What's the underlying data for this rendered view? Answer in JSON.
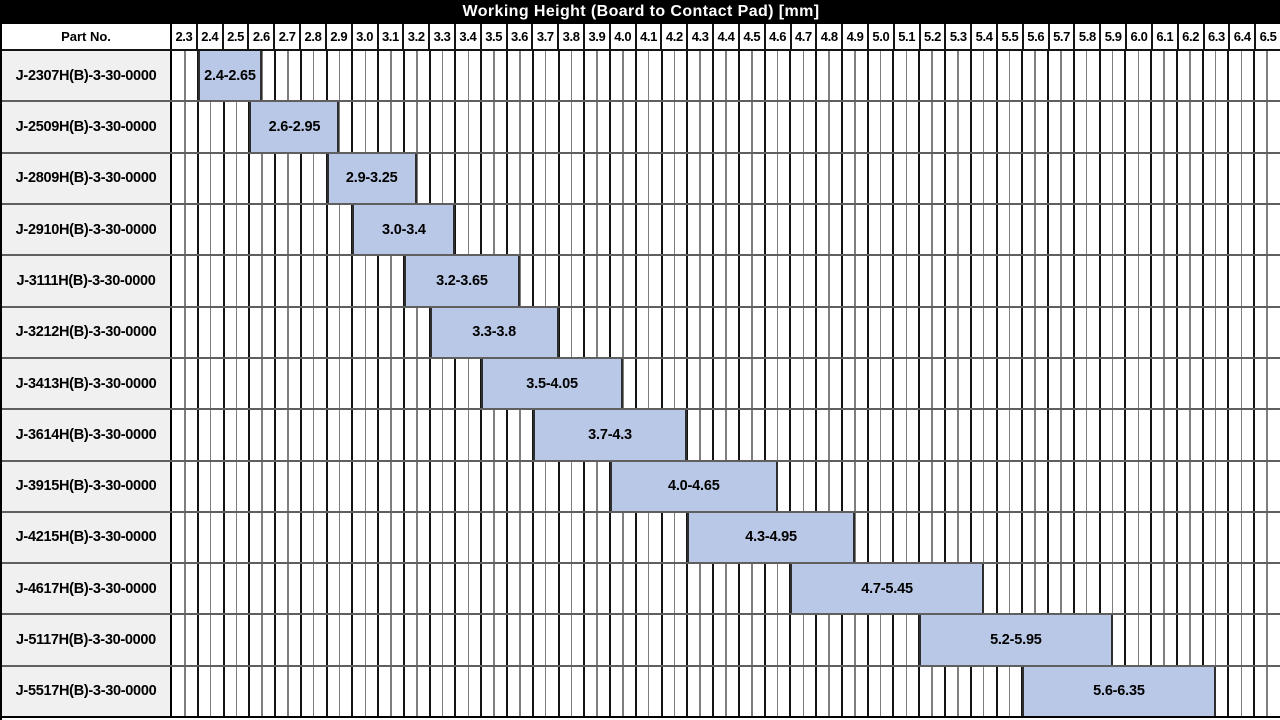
{
  "table": {
    "part_no_header": "Part No."
  },
  "colors": {
    "title_bg": "#000000",
    "title_fg": "#ffffff",
    "table_bg": "#ffffff",
    "part_col_bg": "#f0f0f0",
    "bar_fill": "#b9c8e6",
    "bar_border": "#2e2e2e",
    "grid_major": "#141414",
    "grid_minor": "#7e7e7e",
    "row_border": "#5f5f5f",
    "header_border": "#141414"
  },
  "chart_data": {
    "type": "bar",
    "orientation": "horizontal-range",
    "title": "Working Height (Board to Contact Pad) [mm]",
    "xlabel": "Working Height (Board to Contact Pad) [mm]",
    "ylabel": "Part No.",
    "xlim": [
      2.3,
      6.6
    ],
    "x_major_step": 0.1,
    "x_minor_step": 0.05,
    "grid": true,
    "legend": false,
    "x_tick_labels": [
      "2.3",
      "2.4",
      "2.5",
      "2.6",
      "2.7",
      "2.8",
      "2.9",
      "3.0",
      "3.1",
      "3.2",
      "3.3",
      "3.4",
      "3.5",
      "3.6",
      "3.7",
      "3.8",
      "3.9",
      "4.0",
      "4.1",
      "4.2",
      "4.3",
      "4.4",
      "4.5",
      "4.6",
      "4.7",
      "4.8",
      "4.9",
      "5.0",
      "5.1",
      "5.2",
      "5.3",
      "5.4",
      "5.5",
      "5.6",
      "5.7",
      "5.8",
      "5.9",
      "6.0",
      "6.1",
      "6.2",
      "6.3",
      "6.4",
      "6.5"
    ],
    "categories": [
      "J-2307H(B)-3-30-0000",
      "J-2509H(B)-3-30-0000",
      "J-2809H(B)-3-30-0000",
      "J-2910H(B)-3-30-0000",
      "J-3111H(B)-3-30-0000",
      "J-3212H(B)-3-30-0000",
      "J-3413H(B)-3-30-0000",
      "J-3614H(B)-3-30-0000",
      "J-3915H(B)-3-30-0000",
      "J-4215H(B)-3-30-0000",
      "J-4617H(B)-3-30-0000",
      "J-5117H(B)-3-30-0000",
      "J-5517H(B)-3-30-0000"
    ],
    "ranges": [
      {
        "start": 2.4,
        "end": 2.65,
        "label": "2.4-2.65"
      },
      {
        "start": 2.6,
        "end": 2.95,
        "label": "2.6-2.95"
      },
      {
        "start": 2.9,
        "end": 3.25,
        "label": "2.9-3.25"
      },
      {
        "start": 3.0,
        "end": 3.4,
        "label": "3.0-3.4"
      },
      {
        "start": 3.2,
        "end": 3.65,
        "label": "3.2-3.65"
      },
      {
        "start": 3.3,
        "end": 3.8,
        "label": "3.3-3.8"
      },
      {
        "start": 3.5,
        "end": 4.05,
        "label": "3.5-4.05"
      },
      {
        "start": 3.7,
        "end": 4.3,
        "label": "3.7-4.3"
      },
      {
        "start": 4.0,
        "end": 4.65,
        "label": "4.0-4.65"
      },
      {
        "start": 4.3,
        "end": 4.95,
        "label": "4.3-4.95"
      },
      {
        "start": 4.7,
        "end": 5.45,
        "label": "4.7-5.45"
      },
      {
        "start": 5.2,
        "end": 5.95,
        "label": "5.2-5.95"
      },
      {
        "start": 5.6,
        "end": 6.35,
        "label": "5.6-6.35"
      }
    ]
  }
}
